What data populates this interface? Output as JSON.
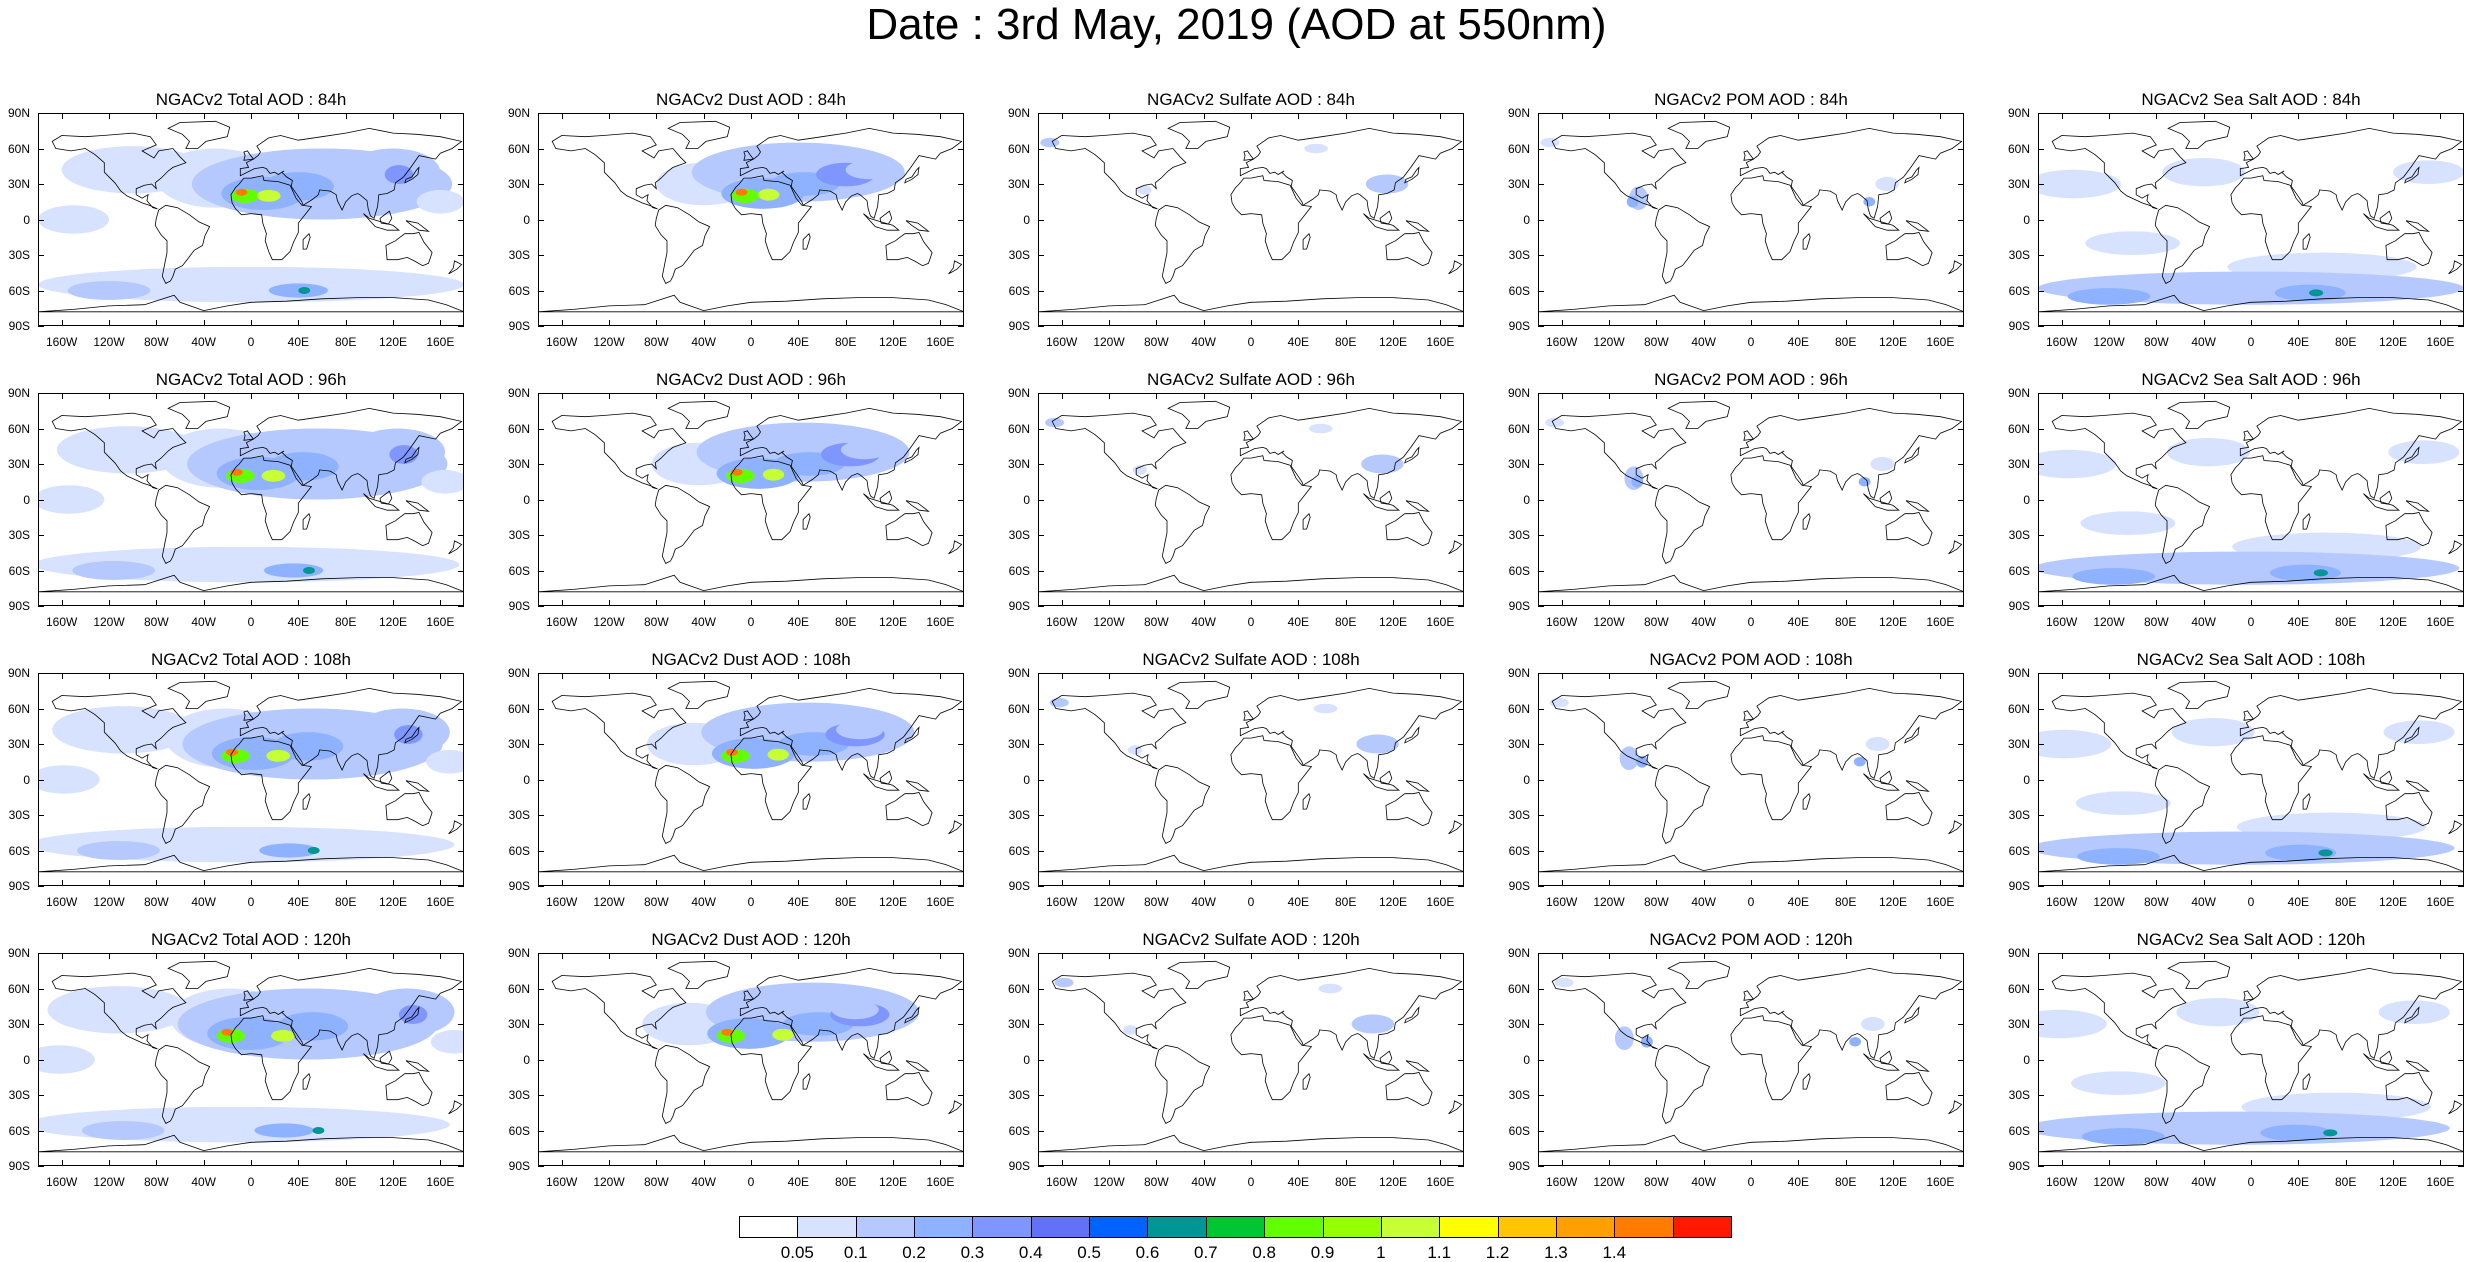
{
  "title": "Date : 3rd May, 2019 (AOD at 550nm)",
  "panels": [
    {
      "title": "NGACv2 Total AOD : 84h",
      "species": "total",
      "hour": 84
    },
    {
      "title": "NGACv2 Dust AOD : 84h",
      "species": "dust",
      "hour": 84
    },
    {
      "title": "NGACv2 Sulfate AOD : 84h",
      "species": "sulfate",
      "hour": 84
    },
    {
      "title": "NGACv2 POM AOD : 84h",
      "species": "pom",
      "hour": 84
    },
    {
      "title": "NGACv2 Sea Salt AOD : 84h",
      "species": "seasalt",
      "hour": 84
    },
    {
      "title": "NGACv2 Total AOD : 96h",
      "species": "total",
      "hour": 96
    },
    {
      "title": "NGACv2 Dust AOD : 96h",
      "species": "dust",
      "hour": 96
    },
    {
      "title": "NGACv2 Sulfate AOD : 96h",
      "species": "sulfate",
      "hour": 96
    },
    {
      "title": "NGACv2 POM AOD : 96h",
      "species": "pom",
      "hour": 96
    },
    {
      "title": "NGACv2 Sea Salt AOD : 96h",
      "species": "seasalt",
      "hour": 96
    },
    {
      "title": "NGACv2 Total AOD : 108h",
      "species": "total",
      "hour": 108
    },
    {
      "title": "NGACv2 Dust AOD : 108h",
      "species": "dust",
      "hour": 108
    },
    {
      "title": "NGACv2 Sulfate AOD : 108h",
      "species": "sulfate",
      "hour": 108
    },
    {
      "title": "NGACv2 POM AOD : 108h",
      "species": "pom",
      "hour": 108
    },
    {
      "title": "NGACv2 Sea Salt AOD : 108h",
      "species": "seasalt",
      "hour": 108
    },
    {
      "title": "NGACv2 Total AOD : 120h",
      "species": "total",
      "hour": 120
    },
    {
      "title": "NGACv2 Dust AOD : 120h",
      "species": "dust",
      "hour": 120
    },
    {
      "title": "NGACv2 Sulfate AOD : 120h",
      "species": "sulfate",
      "hour": 120
    },
    {
      "title": "NGACv2 POM AOD : 120h",
      "species": "pom",
      "hour": 120
    },
    {
      "title": "NGACv2 Sea Salt  AOD : 120h",
      "species": "seasalt",
      "hour": 120
    }
  ],
  "lat_labels": [
    "90N",
    "60N",
    "30N",
    "0",
    "30S",
    "60S",
    "90S"
  ],
  "lat_values": [
    90,
    60,
    30,
    0,
    -30,
    -60,
    -90
  ],
  "lon_labels": [
    "160W",
    "120W",
    "80W",
    "40W",
    "0",
    "40E",
    "80E",
    "120E",
    "160E"
  ],
  "lon_values": [
    -160,
    -120,
    -80,
    -40,
    0,
    40,
    80,
    120,
    160
  ],
  "colorbar": {
    "labels": [
      "0.05",
      "0.1",
      "0.2",
      "0.3",
      "0.4",
      "0.5",
      "0.6",
      "0.7",
      "0.8",
      "0.9",
      "1",
      "1.1",
      "1.2",
      "1.3",
      "1.4"
    ],
    "colors": [
      "#ffffff",
      "#d6e2ff",
      "#b5c9ff",
      "#8eb2ff",
      "#7f96ff",
      "#6370f8",
      "#0063ff",
      "#009696",
      "#00c633",
      "#63ff00",
      "#96ff00",
      "#c6ff33",
      "#ffff00",
      "#ffc600",
      "#ffa000",
      "#ff7c00",
      "#ff1900"
    ]
  }
}
